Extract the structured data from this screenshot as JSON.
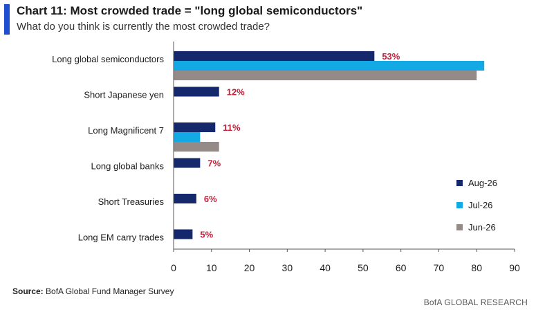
{
  "header": {
    "title": "Chart 11: Most crowded trade = \"long global semiconductors\"",
    "subtitle": "What do you think is currently the most crowded trade?"
  },
  "footer": {
    "source_label": "Source:",
    "source_text": " BofA Global Fund Manager Survey",
    "brand": "BofA GLOBAL RESEARCH"
  },
  "colors": {
    "accent": "#1f4fd1",
    "aug": "#14286b",
    "jul": "#12a9e4",
    "jun": "#948b88",
    "value_label": "#c0213b"
  },
  "chart_data": {
    "type": "bar",
    "orientation": "horizontal",
    "title": "Chart 11: Most crowded trade = \"long global semiconductors\"",
    "subtitle": "What do you think is currently the most crowded trade?",
    "categories": [
      "Long global semiconductors",
      "Short Japanese yen",
      "Long Magnificent 7",
      "Long global banks",
      "Short Treasuries",
      "Long EM carry trades"
    ],
    "series": [
      {
        "name": "Aug-26",
        "values": [
          53,
          12,
          11,
          7,
          6,
          5
        ],
        "labels": [
          "53%",
          "12%",
          "11%",
          "7%",
          "6%",
          "5%"
        ]
      },
      {
        "name": "Jul-26",
        "values": [
          82,
          null,
          7,
          null,
          null,
          null
        ]
      },
      {
        "name": "Jun-26",
        "values": [
          80,
          null,
          12,
          null,
          null,
          null
        ]
      }
    ],
    "xlim": [
      0,
      90
    ],
    "xticks": [
      0,
      10,
      20,
      30,
      40,
      50,
      60,
      70,
      80,
      90
    ],
    "legend_position": "right",
    "grid": false
  }
}
